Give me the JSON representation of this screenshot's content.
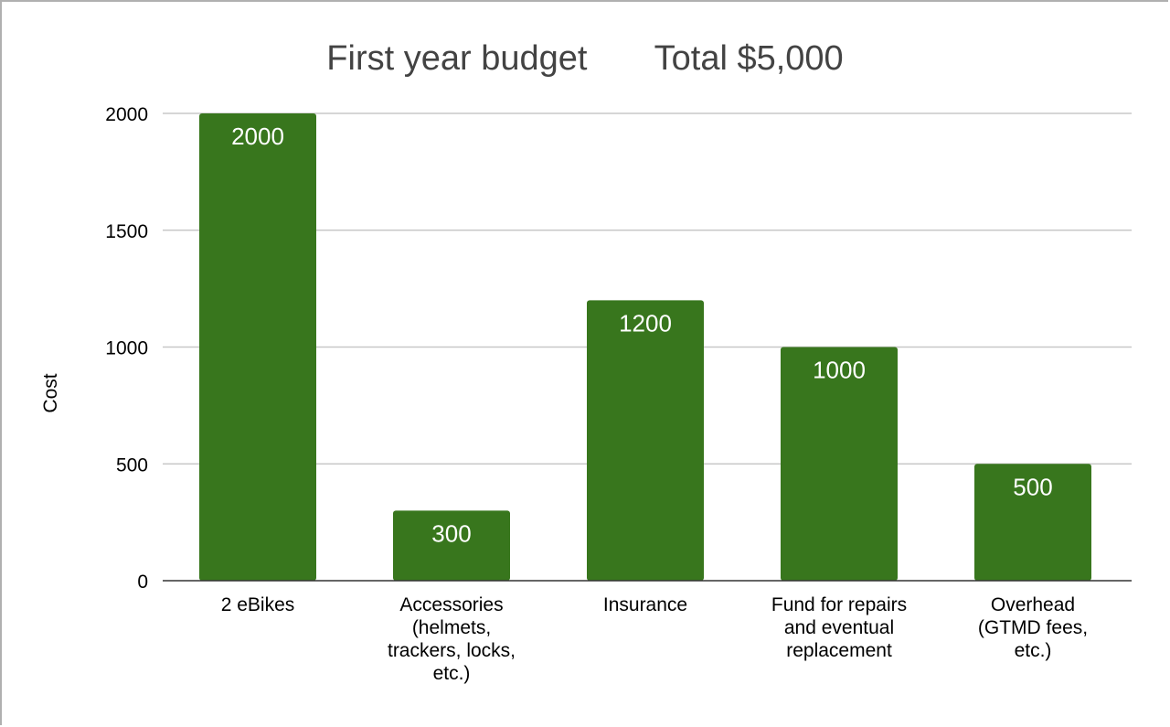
{
  "chart_data": {
    "type": "bar",
    "title": "First year budget       Total $5,000",
    "xlabel": "",
    "ylabel": "Cost",
    "ylim": [
      0,
      2000
    ],
    "yticks": [
      0,
      500,
      1000,
      1500,
      2000
    ],
    "grid": true,
    "categories": [
      [
        "2 eBikes"
      ],
      [
        "Accessories",
        "(helmets,",
        "trackers, locks,",
        "etc.)"
      ],
      [
        "Insurance"
      ],
      [
        "Fund for repairs",
        "and eventual",
        "replacement"
      ],
      [
        "Overhead",
        "(GTMD fees,",
        "etc.)"
      ]
    ],
    "values": [
      2000,
      300,
      1200,
      1000,
      500
    ],
    "bar_color": "#38761d"
  }
}
